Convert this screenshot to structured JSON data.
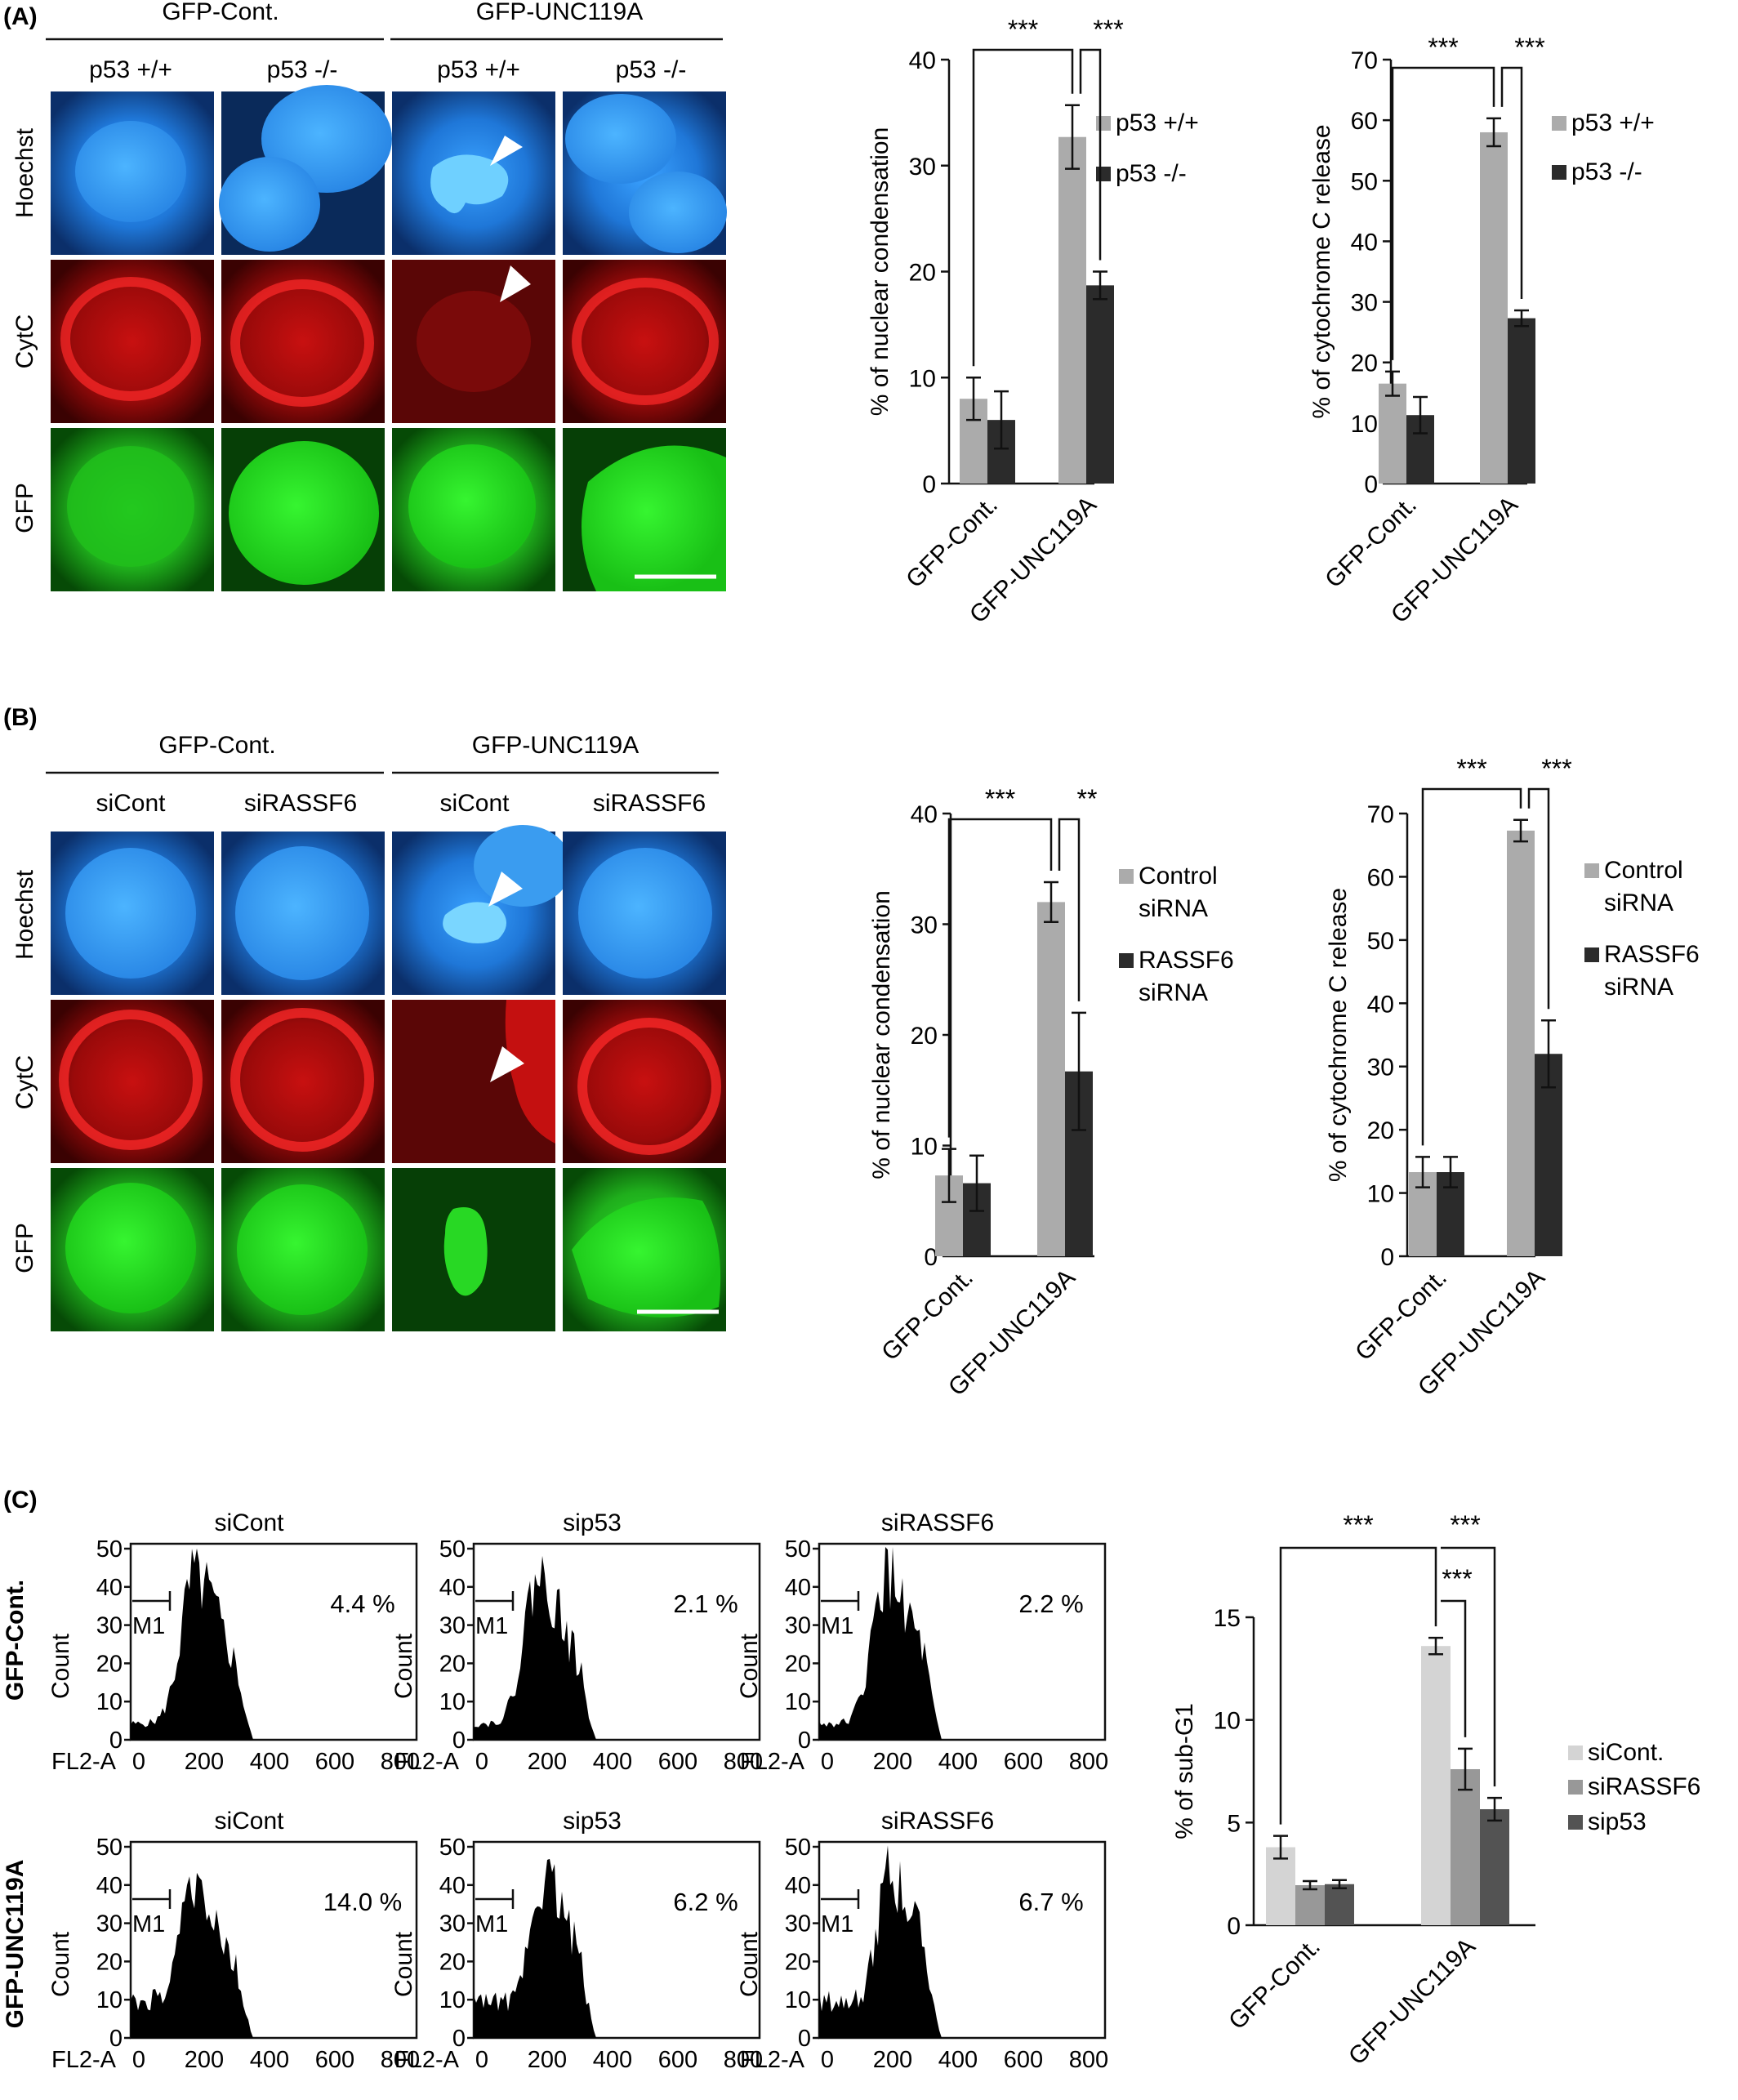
{
  "colors": {
    "light_gray": "#ababab",
    "dark": "#2b2b2b",
    "sicont_c": "#d4d4d4",
    "sirassf6_c": "#989898",
    "sip53_c": "#535353",
    "hoechst": "#2f8cff",
    "cytc": "#d41414",
    "gfp": "#22c41e"
  },
  "panelA": {
    "label": "(A)",
    "groups": [
      "GFP-Cont.",
      "GFP-UNC119A"
    ],
    "conditions": [
      "p53 +/+",
      "p53 -/-",
      "p53 +/+",
      "p53 -/-"
    ],
    "rows": [
      "Hoechst",
      "CytC",
      "GFP"
    ]
  },
  "panelB": {
    "label": "(B)",
    "groups": [
      "GFP-Cont.",
      "GFP-UNC119A"
    ],
    "conditions": [
      "siCont",
      "siRASSF6",
      "siCont",
      "siRASSF6"
    ],
    "rows": [
      "Hoechst",
      "CytC",
      "GFP"
    ]
  },
  "panelC": {
    "label": "(C)",
    "row_labels": [
      "GFP-Cont.",
      "GFP-UNC119A"
    ],
    "histograms": [
      {
        "title": "siCont",
        "percent": "4.4 %"
      },
      {
        "title": "sip53",
        "percent": "2.1 %"
      },
      {
        "title": "siRASSF6",
        "percent": "2.2 %"
      },
      {
        "title": "siCont",
        "percent": "14.0 %"
      },
      {
        "title": "sip53",
        "percent": "6.2 %"
      },
      {
        "title": "siRASSF6",
        "percent": "6.7 %"
      }
    ],
    "hist_ylabel": "Count",
    "hist_xlabel": "FL2-A",
    "hist_yticks": [
      "0",
      "10",
      "20",
      "30",
      "40",
      "50"
    ],
    "hist_xticks": [
      "0",
      "200",
      "400",
      "600",
      "800"
    ],
    "marker": "M1"
  },
  "chart_data": [
    {
      "type": "bar",
      "panel": "A",
      "ylabel": "% of nuclear condensation",
      "categories": [
        "GFP-Cont.",
        "GFP-UNC119A"
      ],
      "ylim": [
        0,
        40
      ],
      "yticks": [
        "0",
        "10",
        "20",
        "30",
        "40"
      ],
      "series": [
        {
          "name": "p53 +/+",
          "color": "#ababab",
          "values": [
            8,
            32.7
          ],
          "errors": [
            2,
            3
          ]
        },
        {
          "name": "p53 -/-",
          "color": "#2b2b2b",
          "values": [
            6,
            18.7
          ],
          "errors": [
            2.7,
            1.3
          ]
        }
      ],
      "significance": [
        "***",
        "***"
      ],
      "legend": "right"
    },
    {
      "type": "bar",
      "panel": "A",
      "ylabel": "% of cytochrome C release",
      "categories": [
        "GFP-Cont.",
        "GFP-UNC119A"
      ],
      "ylim": [
        0,
        70
      ],
      "yticks": [
        "0",
        "10",
        "20",
        "30",
        "40",
        "50",
        "60",
        "70"
      ],
      "series": [
        {
          "name": "p53 +/+",
          "color": "#ababab",
          "values": [
            16.5,
            58
          ],
          "errors": [
            2,
            2.3
          ]
        },
        {
          "name": "p53 -/-",
          "color": "#2b2b2b",
          "values": [
            11.3,
            27.3
          ],
          "errors": [
            3,
            1.3
          ]
        }
      ],
      "significance": [
        "***",
        "***"
      ],
      "legend": "right"
    },
    {
      "type": "bar",
      "panel": "B",
      "ylabel": "% of nuclear condensation",
      "categories": [
        "GFP-Cont.",
        "GFP-UNC119A"
      ],
      "ylim": [
        0,
        40
      ],
      "yticks": [
        "0",
        "10",
        "20",
        "30",
        "40"
      ],
      "series": [
        {
          "name": "Control siRNA",
          "color": "#ababab",
          "values": [
            7.3,
            32
          ],
          "errors": [
            2.4,
            1.8
          ]
        },
        {
          "name": "RASSF6 siRNA",
          "color": "#2b2b2b",
          "values": [
            6.6,
            16.7
          ],
          "errors": [
            2.5,
            5.3
          ]
        }
      ],
      "significance": [
        "***",
        "**"
      ],
      "legend": "right"
    },
    {
      "type": "bar",
      "panel": "B",
      "ylabel": "% of cytochrome C release",
      "categories": [
        "GFP-Cont.",
        "GFP-UNC119A"
      ],
      "ylim": [
        0,
        70
      ],
      "yticks": [
        "0",
        "10",
        "20",
        "30",
        "40",
        "50",
        "60",
        "70"
      ],
      "series": [
        {
          "name": "Control siRNA",
          "color": "#ababab",
          "values": [
            13.3,
            67.3
          ],
          "errors": [
            2.4,
            1.7
          ]
        },
        {
          "name": "RASSF6 siRNA",
          "color": "#2b2b2b",
          "values": [
            13.3,
            32
          ],
          "errors": [
            2.4,
            5.3
          ]
        }
      ],
      "significance": [
        "***",
        "***"
      ],
      "legend": "right"
    },
    {
      "type": "bar",
      "panel": "C",
      "ylabel": "% of sub-G1",
      "categories": [
        "GFP-Cont.",
        "GFP-UNC119A"
      ],
      "ylim": [
        0,
        15
      ],
      "yticks": [
        "0",
        "5",
        "10",
        "15"
      ],
      "series": [
        {
          "name": "siCont.",
          "color": "#d4d4d4",
          "values": [
            3.8,
            13.6
          ],
          "errors": [
            0.55,
            0.4
          ]
        },
        {
          "name": "siRASSF6",
          "color": "#989898",
          "values": [
            1.95,
            7.6
          ],
          "errors": [
            0.2,
            1
          ]
        },
        {
          "name": "sip53",
          "color": "#535353",
          "values": [
            2,
            5.65
          ],
          "errors": [
            0.2,
            0.55
          ]
        }
      ],
      "significance": [
        "***",
        "***",
        "***"
      ],
      "legend": "right"
    }
  ]
}
